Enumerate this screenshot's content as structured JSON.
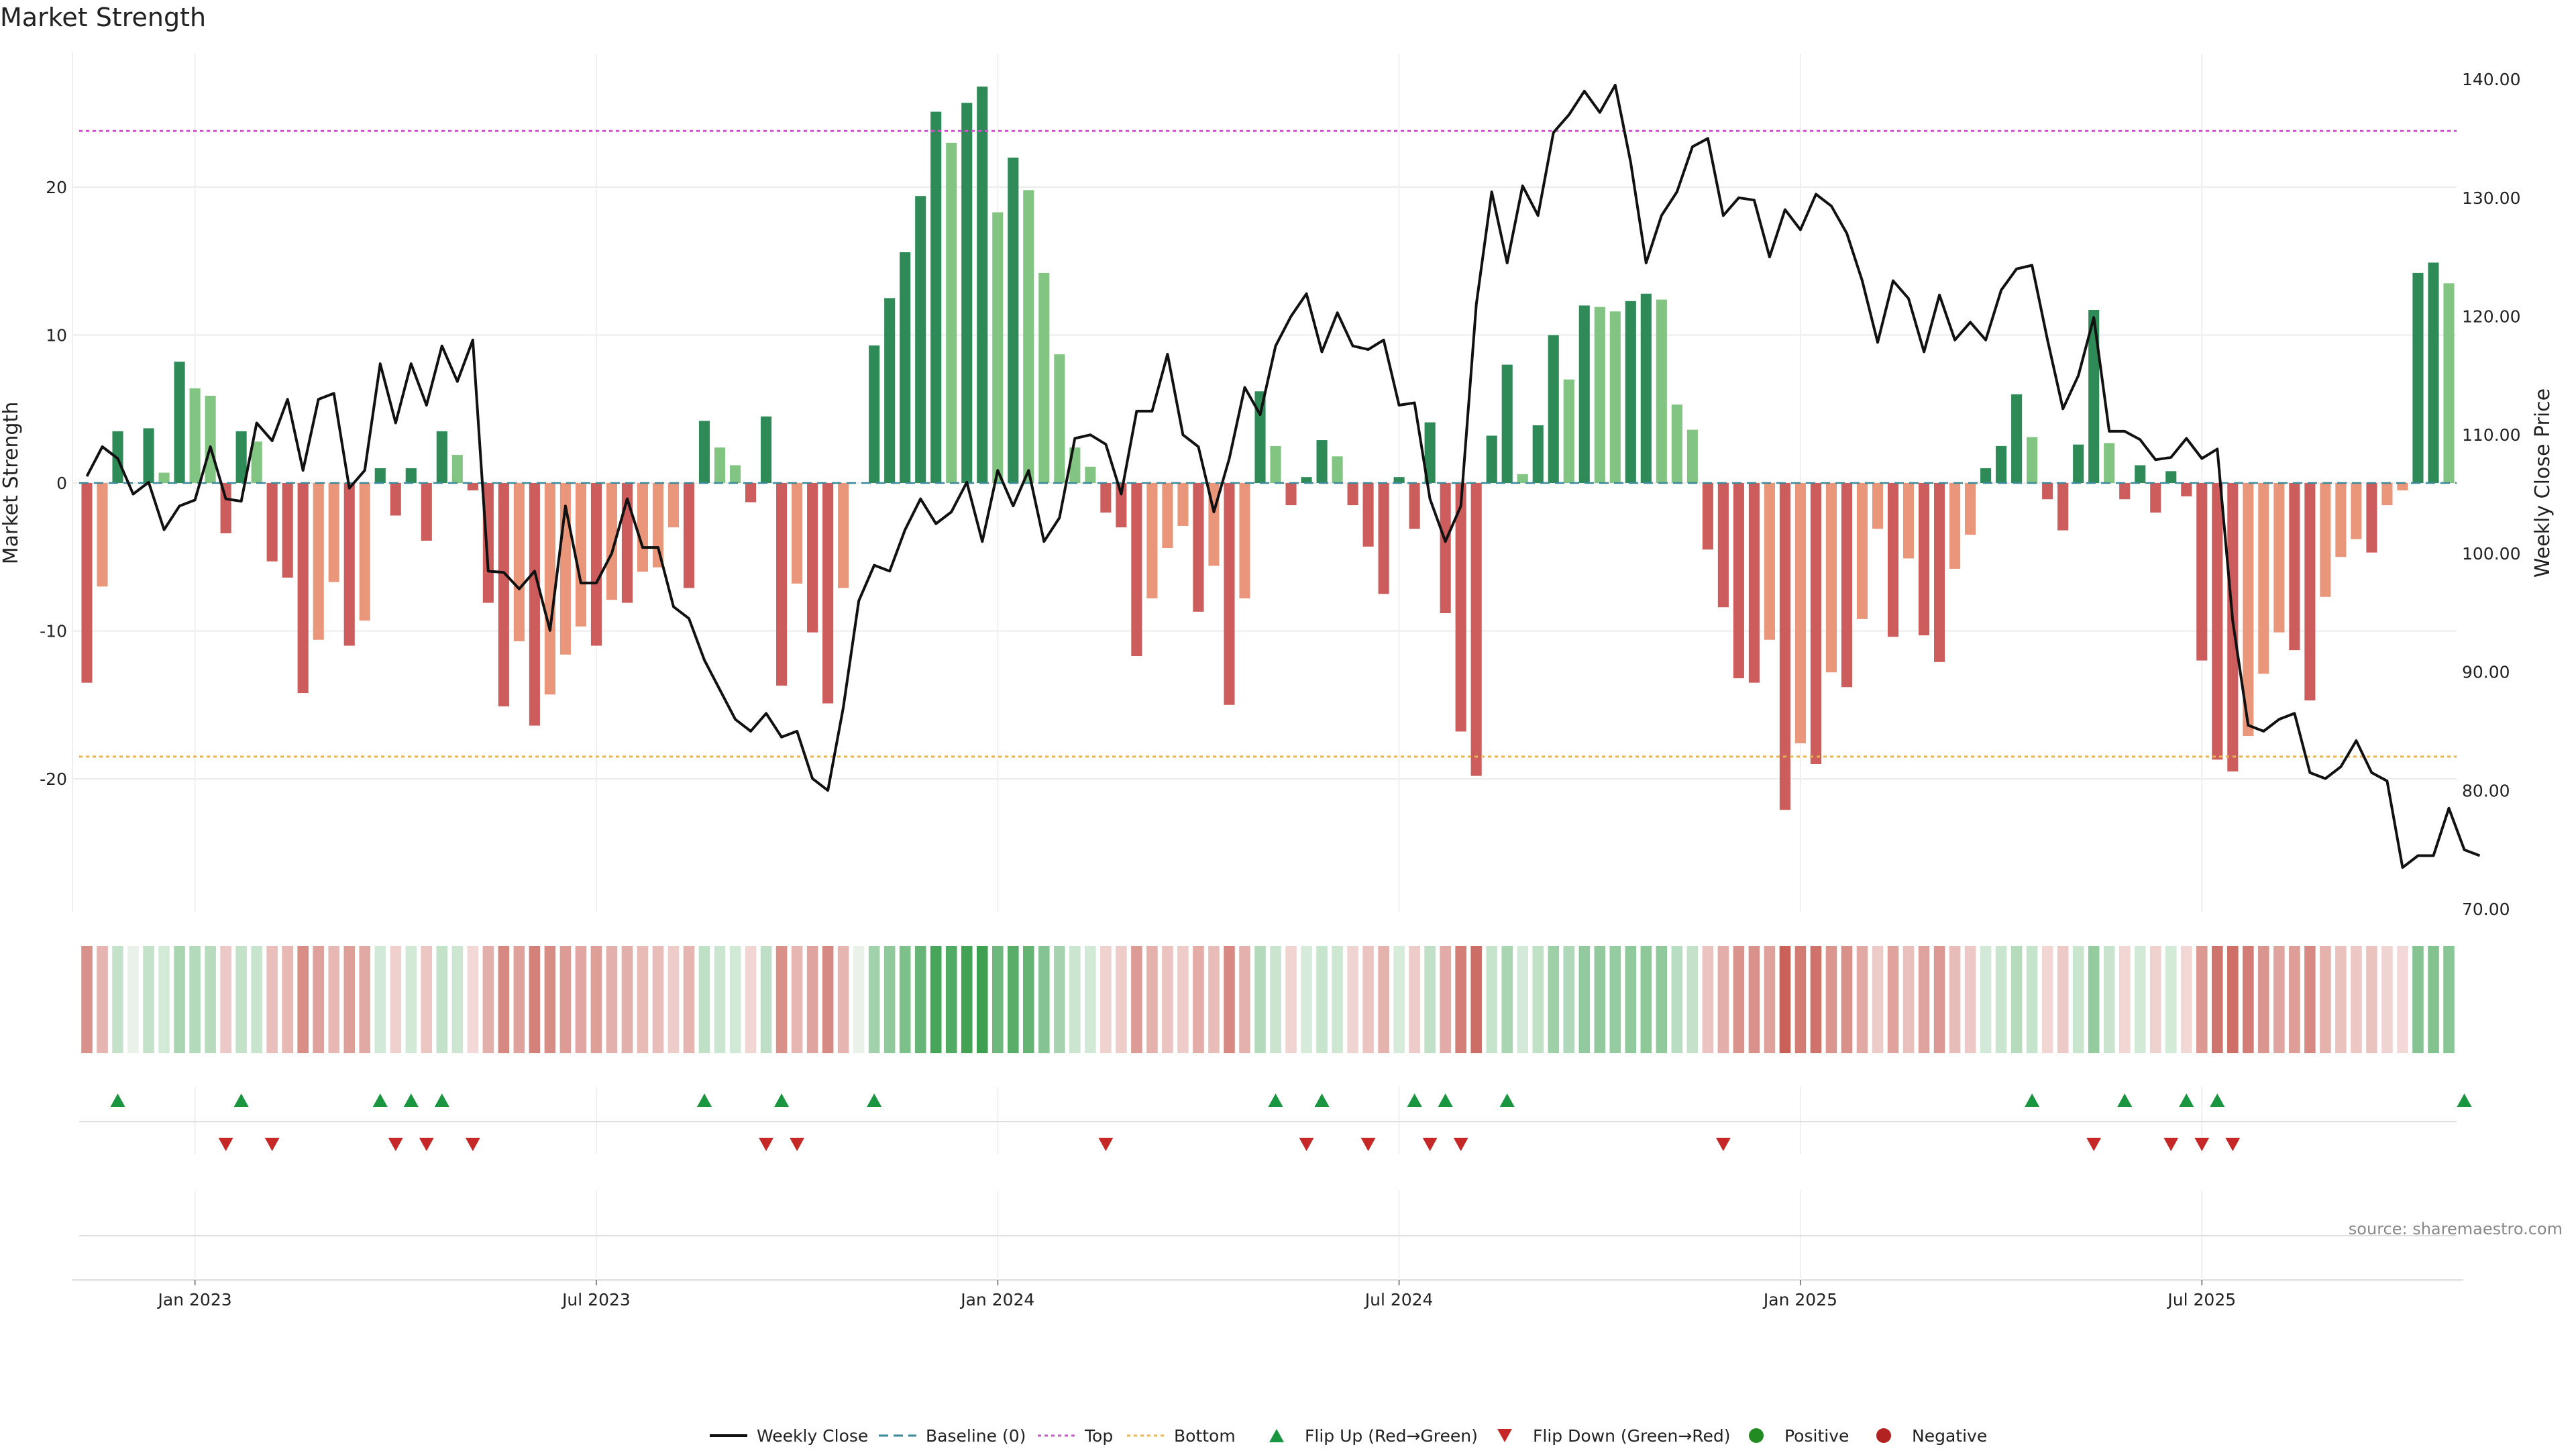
{
  "chart_data": {
    "type": "bar",
    "title": "Market Strength",
    "source": "source: sharemaestro.com",
    "left_axis": {
      "label": "Market Strength",
      "ylim": [
        -29,
        29
      ],
      "ticks": [
        -20,
        -10,
        0,
        10,
        20
      ]
    },
    "right_axis": {
      "label": "Weekly Close Price",
      "ylim": [
        70,
        140
      ],
      "ticks": [
        "70.00",
        "80.00",
        "90.00",
        "100.00",
        "110.00",
        "120.00",
        "130.00",
        "140.00"
      ]
    },
    "x_ticks": [
      {
        "label": "Jan 2023",
        "week": 7
      },
      {
        "label": "Jul 2023",
        "week": 33
      },
      {
        "label": "Jan 2024",
        "week": 59
      },
      {
        "label": "Jul 2024",
        "week": 85
      },
      {
        "label": "Jan 2025",
        "week": 111
      },
      {
        "label": "Jul 2025",
        "week": 137
      }
    ],
    "top_line": 23.8,
    "bottom_line": -18.5,
    "strength": [
      -13.5,
      -7,
      3.5,
      0,
      3.7,
      0.7,
      8.2,
      6.4,
      5.9,
      -3.4,
      3.5,
      2.8,
      -5.3,
      -6.4,
      -14.2,
      -10.6,
      -6.7,
      -11,
      -9.3,
      1,
      -2.2,
      1,
      -3.9,
      3.5,
      1.9,
      -0.5,
      -8.1,
      -15.1,
      -10.7,
      -16.4,
      -14.3,
      -11.6,
      -9.7,
      -11,
      -7.9,
      -8.1,
      -6,
      -5.7,
      -3,
      -7.1,
      4.2,
      2.4,
      1.2,
      -1.3,
      4.5,
      -13.7,
      -6.8,
      -10.1,
      -14.9,
      -7.1,
      0,
      9.3,
      12.5,
      15.6,
      19.4,
      25.1,
      23,
      25.7,
      26.8,
      18.3,
      22,
      19.8,
      14.2,
      8.7,
      2.4,
      1.1,
      -2,
      -3,
      -11.7,
      -7.8,
      -4.4,
      -2.9,
      -8.7,
      -5.6,
      -15,
      -7.8,
      6.2,
      2.5,
      -1.5,
      0.4,
      2.9,
      1.8,
      -1.5,
      -4.3,
      -7.5,
      0.4,
      -3.1,
      4.1,
      -8.8,
      -16.8,
      -19.8,
      3.2,
      8,
      0.6,
      3.9,
      10,
      7,
      12,
      11.9,
      11.6,
      12.3,
      12.8,
      12.4,
      5.3,
      3.6,
      -4.5,
      -8.4,
      -13.2,
      -13.5,
      -10.6,
      -22.1,
      -17.6,
      -19,
      -12.8,
      -13.8,
      -9.2,
      -3.1,
      -10.4,
      -5.1,
      -10.3,
      -12.1,
      -5.8,
      -3.5,
      1,
      2.5,
      6,
      3.1,
      -1.1,
      -3.2,
      2.6,
      11.7,
      2.7,
      -1.1,
      1.2,
      -2,
      0.8,
      -0.9,
      -12,
      -18.7,
      -19.5,
      -17.1,
      -12.9,
      -10.1,
      -11.3,
      -14.7,
      -7.7,
      -5,
      -3.8,
      -4.7,
      -1.5,
      -0.5,
      14.2,
      14.9,
      13.5
    ],
    "weekly_close": [
      106.5,
      109,
      108,
      105,
      106,
      102,
      104,
      104.5,
      109,
      104.6,
      104.4,
      111,
      109.5,
      113,
      107,
      113,
      113.5,
      105.5,
      107,
      116,
      111,
      116,
      112.5,
      117.5,
      114.5,
      118,
      98.5,
      98.4,
      97,
      98.5,
      93.5,
      104,
      97.5,
      97.5,
      100,
      104.6,
      100.5,
      100.5,
      95.5,
      94.5,
      91,
      88.5,
      86,
      85,
      86.5,
      84.5,
      85,
      81,
      80,
      87,
      96,
      99,
      98.5,
      102,
      104.6,
      102.5,
      103.5,
      106,
      101,
      107,
      104,
      107,
      101,
      103,
      109.7,
      110,
      109.2,
      105,
      112,
      112,
      116.8,
      110,
      109,
      103.5,
      108,
      114,
      111.7,
      117.5,
      120,
      121.9,
      117,
      120.3,
      117.5,
      117.2,
      118,
      112.5,
      112.7,
      104.6,
      101,
      104,
      121,
      130.5,
      124.5,
      131,
      128.5,
      135.5,
      137,
      139,
      137.2,
      139.5,
      133,
      124.5,
      128.5,
      130.5,
      134.3,
      135,
      128.5,
      130,
      129.8,
      125,
      129,
      127.3,
      130.3,
      129.3,
      127,
      123,
      117.8,
      123,
      121.5,
      117,
      121.8,
      118,
      119.5,
      118,
      122.2,
      124,
      124.3,
      118,
      112.2,
      115,
      119.9,
      110.3,
      110.3,
      109.6,
      107.9,
      108.1,
      109.7,
      108,
      108.8,
      94.3,
      85.5,
      85,
      86,
      86.5,
      81.5,
      81,
      82,
      84.2,
      81.5,
      80.8,
      73.5,
      74.5,
      74.5,
      78.5,
      75,
      74.5
    ],
    "flips_up": [
      2,
      10,
      19,
      21,
      23,
      40,
      45,
      51,
      77,
      80,
      86,
      88,
      92,
      126,
      132,
      136,
      138,
      154
    ],
    "flips_down": [
      9,
      12,
      20,
      22,
      25,
      44,
      46,
      66,
      79,
      83,
      87,
      89,
      106,
      130,
      135,
      137,
      139
    ],
    "legend": [
      {
        "label": "Weekly Close"
      },
      {
        "label": "Baseline (0)"
      },
      {
        "label": "Top"
      },
      {
        "label": "Bottom"
      },
      {
        "label": "Flip Up (Red→Green)"
      },
      {
        "label": "Flip Down (Green→Red)"
      },
      {
        "label": "Positive"
      },
      {
        "label": "Negative"
      }
    ],
    "colors": {
      "pos_strong": "#2e8a57",
      "pos_weak": "#82c482",
      "neg_strong": "#cd5c5c",
      "neg_weak": "#e9967a",
      "close": "#111111",
      "baseline": "#3a8a9a",
      "top": "#cc55cc",
      "bottom": "#e8b45a",
      "flip_up": "#1a9641",
      "flip_down": "#c62828",
      "positive": "#228b22",
      "negative": "#b22222"
    }
  }
}
